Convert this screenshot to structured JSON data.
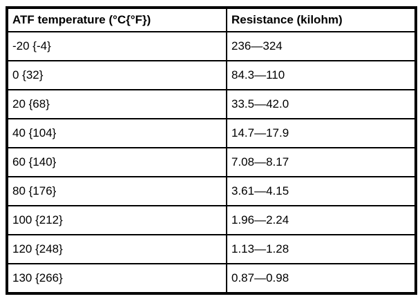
{
  "colors": {
    "border": "#000000",
    "background": "#ffffff",
    "text": "#000000"
  },
  "table": {
    "headers": [
      "ATF temperature (°C{°F})",
      "Resistance (kilohm)"
    ],
    "rows": [
      {
        "temperature": "-20 {-4}",
        "resistance": "236—324"
      },
      {
        "temperature": "0 {32}",
        "resistance": "84.3—110"
      },
      {
        "temperature": "20 {68}",
        "resistance": "33.5—42.0"
      },
      {
        "temperature": "40 {104}",
        "resistance": "14.7—17.9"
      },
      {
        "temperature": "60 {140}",
        "resistance": "7.08—8.17"
      },
      {
        "temperature": "80 {176}",
        "resistance": "3.61—4.15"
      },
      {
        "temperature": "100 {212}",
        "resistance": "1.96—2.24"
      },
      {
        "temperature": "120 {248}",
        "resistance": "1.13—1.28"
      },
      {
        "temperature": "130 {266}",
        "resistance": "0.87—0.98"
      }
    ]
  }
}
